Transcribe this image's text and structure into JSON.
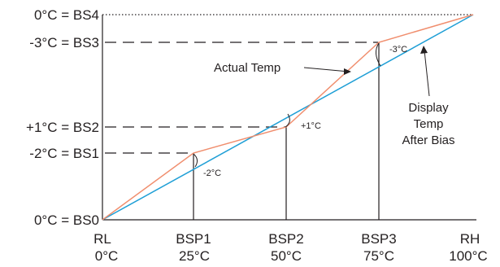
{
  "diagram": {
    "y_labels": [
      {
        "key": "bs4",
        "text": "0°C = BS4"
      },
      {
        "key": "bs3",
        "text": "-3°C = BS3"
      },
      {
        "key": "bs2",
        "text": "+1°C = BS2"
      },
      {
        "key": "bs1",
        "text": "-2°C = BS1"
      },
      {
        "key": "bs0",
        "text": "0°C = BS0"
      }
    ],
    "x_labels": [
      {
        "key": "rl",
        "name": "RL",
        "temp": "0°C"
      },
      {
        "key": "bsp1",
        "name": "BSP1",
        "temp": "25°C"
      },
      {
        "key": "bsp2",
        "name": "BSP2",
        "temp": "50°C"
      },
      {
        "key": "bsp3",
        "name": "BSP3",
        "temp": "75°C"
      },
      {
        "key": "rh",
        "name": "RH",
        "temp": "100°C"
      }
    ],
    "bias_labels": {
      "bsp1": "-2°C",
      "bsp2": "+1°C",
      "bsp3": "-3°C"
    },
    "annotations": {
      "actual": "Actual Temp",
      "display_line1": "Display",
      "display_line2": "Temp",
      "display_line3": "After Bias"
    },
    "colors": {
      "actual_temp_line": "#1f9fd6",
      "display_temp_line": "#f08e6e",
      "axis": "#231f20"
    }
  }
}
